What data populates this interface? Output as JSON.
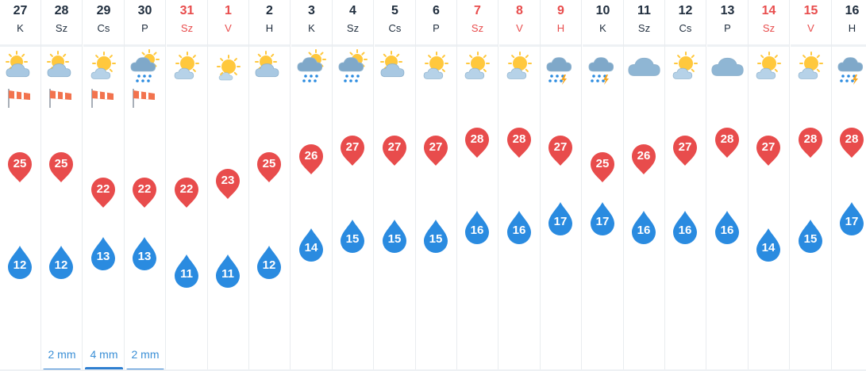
{
  "colors": {
    "max_pin": "#e84c4c",
    "min_drop": "#2a8be0",
    "weekend": "#e84c4c",
    "rain": "#2f7fd0"
  },
  "days": [
    {
      "day": "27",
      "name": "K",
      "weekend": false,
      "icon": "partly-cloudy-sun-icon",
      "wind": "windsock-icon",
      "max": "25",
      "min": "12",
      "rain": ""
    },
    {
      "day": "28",
      "name": "Sz",
      "weekend": false,
      "icon": "partly-cloudy-sun-icon",
      "wind": "windsock-icon",
      "max": "25",
      "min": "12",
      "rain": "2 mm"
    },
    {
      "day": "29",
      "name": "Cs",
      "weekend": false,
      "icon": "sun-cloud-icon",
      "wind": "windsock-icon",
      "max": "22",
      "min": "13",
      "rain": "4 mm"
    },
    {
      "day": "30",
      "name": "P",
      "weekend": false,
      "icon": "rain-cloud-sun-icon",
      "wind": "windsock-icon",
      "max": "22",
      "min": "13",
      "rain": "2 mm"
    },
    {
      "day": "31",
      "name": "Sz",
      "weekend": true,
      "icon": "sun-cloud-icon",
      "wind": "",
      "max": "22",
      "min": "11",
      "rain": ""
    },
    {
      "day": "1",
      "name": "V",
      "weekend": true,
      "icon": "sun-icon",
      "wind": "",
      "max": "23",
      "min": "11",
      "rain": ""
    },
    {
      "day": "2",
      "name": "H",
      "weekend": false,
      "icon": "partly-cloudy-sun-icon",
      "wind": "",
      "max": "25",
      "min": "12",
      "rain": ""
    },
    {
      "day": "3",
      "name": "K",
      "weekend": false,
      "icon": "rain-cloud-sun-icon",
      "wind": "",
      "max": "26",
      "min": "14",
      "rain": ""
    },
    {
      "day": "4",
      "name": "Sz",
      "weekend": false,
      "icon": "rain-cloud-sun-icon",
      "wind": "",
      "max": "27",
      "min": "15",
      "rain": ""
    },
    {
      "day": "5",
      "name": "Cs",
      "weekend": false,
      "icon": "partly-cloudy-sun-icon",
      "wind": "",
      "max": "27",
      "min": "15",
      "rain": ""
    },
    {
      "day": "6",
      "name": "P",
      "weekend": false,
      "icon": "sun-cloud-icon",
      "wind": "",
      "max": "27",
      "min": "15",
      "rain": ""
    },
    {
      "day": "7",
      "name": "Sz",
      "weekend": true,
      "icon": "sun-cloud-icon",
      "wind": "",
      "max": "28",
      "min": "16",
      "rain": ""
    },
    {
      "day": "8",
      "name": "V",
      "weekend": true,
      "icon": "sun-cloud-icon",
      "wind": "",
      "max": "28",
      "min": "16",
      "rain": ""
    },
    {
      "day": "9",
      "name": "H",
      "weekend": true,
      "icon": "thunderstorm-icon",
      "wind": "",
      "max": "27",
      "min": "17",
      "rain": ""
    },
    {
      "day": "10",
      "name": "K",
      "weekend": false,
      "icon": "thunderstorm-icon",
      "wind": "",
      "max": "25",
      "min": "17",
      "rain": ""
    },
    {
      "day": "11",
      "name": "Sz",
      "weekend": false,
      "icon": "cloud-icon",
      "wind": "",
      "max": "26",
      "min": "16",
      "rain": ""
    },
    {
      "day": "12",
      "name": "Cs",
      "weekend": false,
      "icon": "sun-cloud-icon",
      "wind": "",
      "max": "27",
      "min": "16",
      "rain": ""
    },
    {
      "day": "13",
      "name": "P",
      "weekend": false,
      "icon": "cloud-icon",
      "wind": "",
      "max": "28",
      "min": "16",
      "rain": ""
    },
    {
      "day": "14",
      "name": "Sz",
      "weekend": true,
      "icon": "sun-cloud-icon",
      "wind": "",
      "max": "27",
      "min": "14",
      "rain": ""
    },
    {
      "day": "15",
      "name": "V",
      "weekend": true,
      "icon": "sun-cloud-icon",
      "wind": "",
      "max": "28",
      "min": "15",
      "rain": ""
    },
    {
      "day": "16",
      "name": "H",
      "weekend": false,
      "icon": "thunderstorm-icon",
      "wind": "",
      "max": "28",
      "min": "17",
      "rain": ""
    }
  ]
}
